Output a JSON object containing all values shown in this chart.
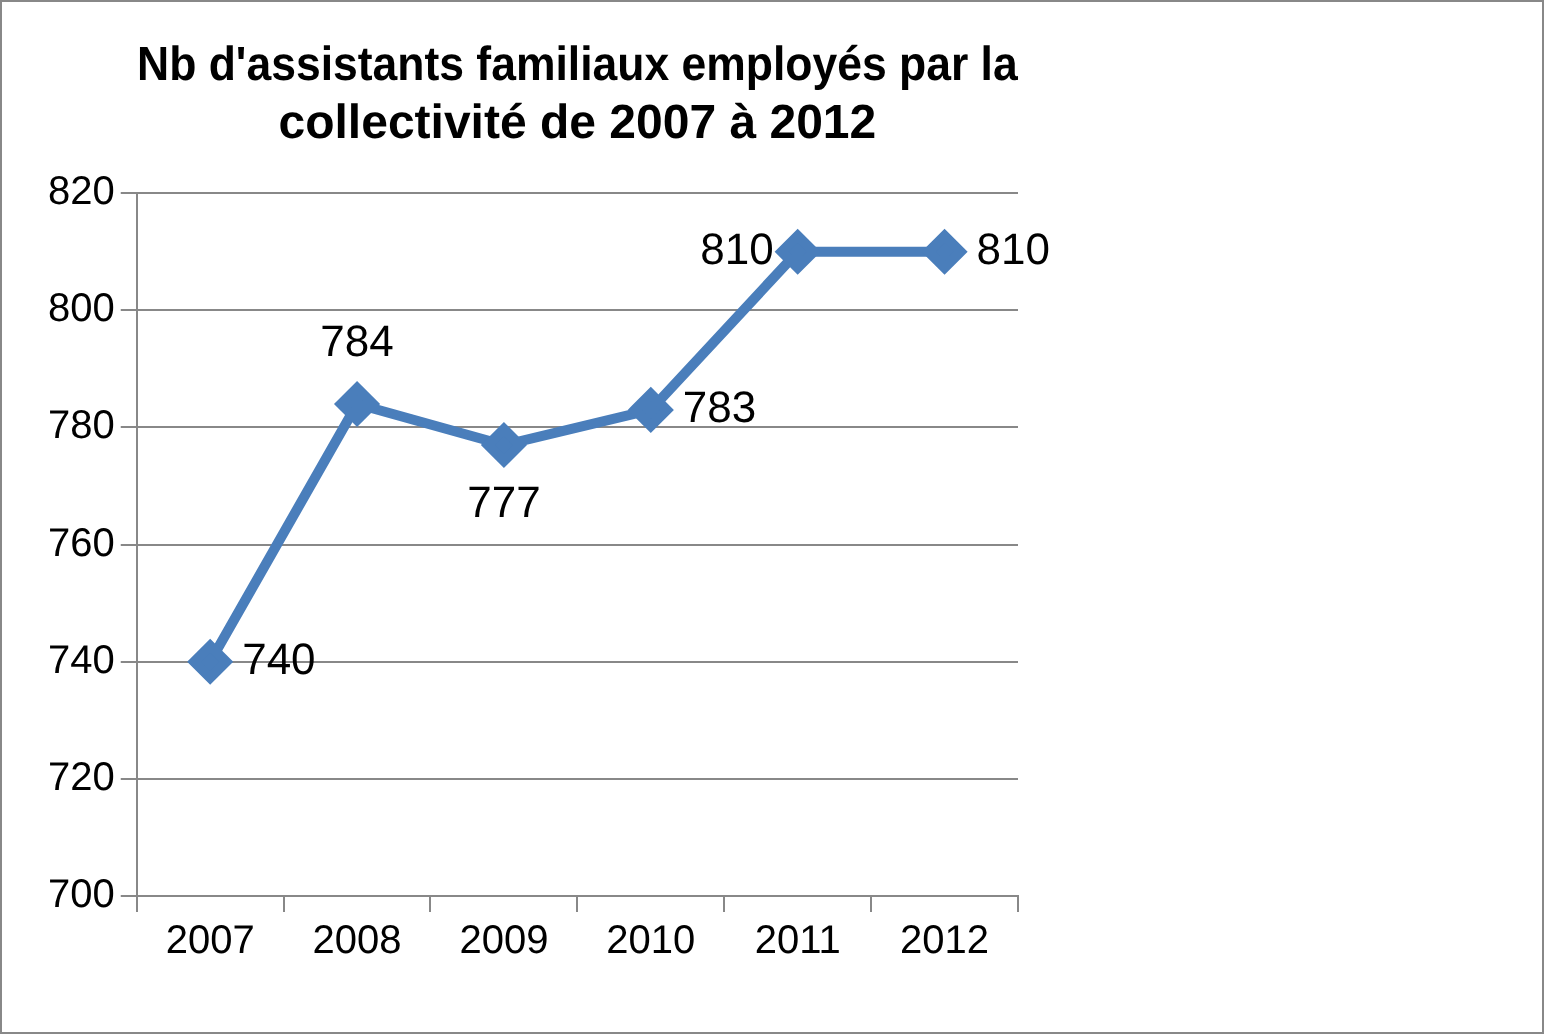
{
  "chart_data": {
    "type": "line",
    "title": "Nb d'assistants familiaux employés par la collectivité de 2007 à 2012",
    "categories": [
      "2007",
      "2008",
      "2009",
      "2010",
      "2011",
      "2012"
    ],
    "series": [
      {
        "color": "#4a7ebb",
        "values": [
          740,
          784,
          777,
          783,
          810,
          810
        ]
      }
    ],
    "ylim": [
      700,
      820
    ],
    "yticks": [
      700,
      720,
      740,
      760,
      780,
      800,
      820
    ],
    "grid": "y",
    "legend": false,
    "marker": "diamond",
    "line_style": "solid",
    "data_labels": true
  }
}
